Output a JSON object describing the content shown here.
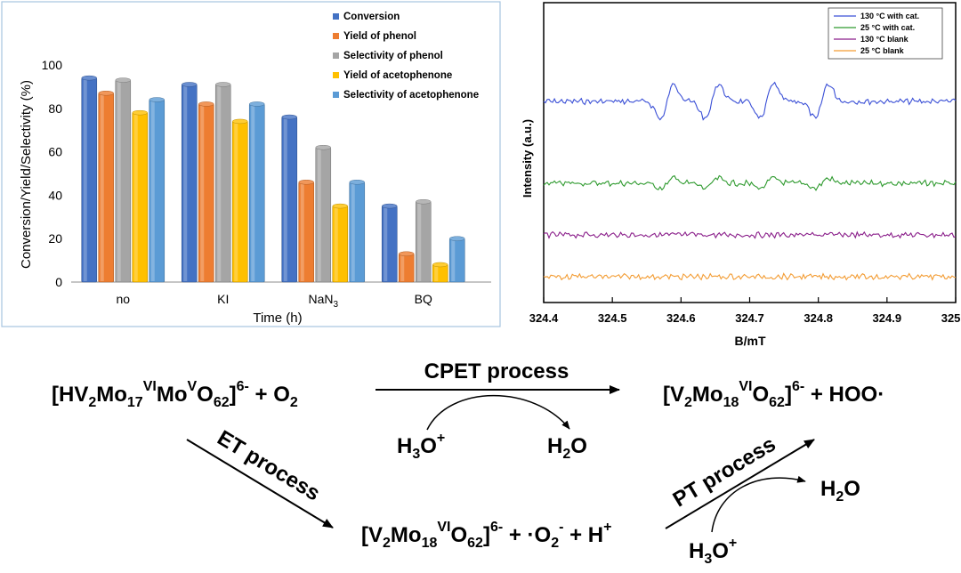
{
  "chart_data": [
    {
      "type": "bar",
      "xlabel": "Time (h)",
      "ylabel": "Conversion/Yield/Selectivity (%)",
      "ylim": [
        0,
        100
      ],
      "yticks": [
        "0",
        "20",
        "40",
        "60",
        "80",
        "100"
      ],
      "categories": [
        {
          "label": "no",
          "sub": ""
        },
        {
          "label": "KI",
          "sub": ""
        },
        {
          "label": "NaN",
          "sub": "3"
        },
        {
          "label": "BQ",
          "sub": ""
        }
      ],
      "legend_position": "top-right",
      "grid": false,
      "series": [
        {
          "name": "Conversion",
          "color": "#4472c4",
          "values": [
            94,
            91,
            76,
            35
          ]
        },
        {
          "name": "Yield of phenol",
          "color": "#ed7d31",
          "values": [
            87,
            82,
            46,
            13
          ]
        },
        {
          "name": "Selectivity of phenol",
          "color": "#a5a5a5",
          "values": [
            93,
            91,
            62,
            37
          ]
        },
        {
          "name": "Yield of acetophenone",
          "color": "#ffc000",
          "values": [
            78,
            74,
            35,
            8
          ]
        },
        {
          "name": "Selectivity of acetophenone",
          "color": "#5b9bd5",
          "values": [
            84,
            82,
            46,
            20
          ]
        }
      ]
    },
    {
      "type": "line",
      "xlabel": "B/mT",
      "ylabel": "Intensity (a.u.)",
      "xlim": [
        324.4,
        325.0
      ],
      "xticks": [
        "324.4",
        "324.5",
        "324.6",
        "324.7",
        "324.8",
        "324.9",
        "325.0"
      ],
      "grid": false,
      "legend_position": "top-right",
      "hyperfine_peaks_mT": [
        324.58,
        324.645,
        324.725,
        324.805
      ],
      "series": [
        {
          "name": "130 °C with cat.",
          "color": "#3a4fd6",
          "line_amplitude": 1.0
        },
        {
          "name": "25 °C with cat.",
          "color": "#2e9a2e",
          "line_amplitude": 0.28
        },
        {
          "name": "130 °C blank",
          "color": "#8a1e8a",
          "line_amplitude": 0.0
        },
        {
          "name": "25 °C blank",
          "color": "#f39c33",
          "line_amplitude": 0.0
        }
      ]
    }
  ],
  "scheme": {
    "reactant": {
      "a": "[HV",
      "a_sub": "2",
      "b": "Mo",
      "b_sub": "17",
      "b_sup": "VI",
      "c": "Mo",
      "c_sup": "V",
      "d": "O",
      "d_sub": "62",
      "e": "]",
      "e_sup": "6-",
      "f": " + O",
      "f_sub": "2"
    },
    "product_top": {
      "a": "[V",
      "a_sub": "2",
      "b": "Mo",
      "b_sub": "18",
      "b_sup": "VI",
      "c": "O",
      "c_sub": "62",
      "d": "]",
      "d_sup": "6-",
      "e": " + HOO·"
    },
    "intermediate": {
      "a": "[V",
      "a_sub": "2",
      "b": "Mo",
      "b_sub": "18",
      "b_sup": "VI",
      "c": "O",
      "c_sub": "62",
      "d": "]",
      "d_sup": "6-",
      "e": " + ·O",
      "e_sub": "2",
      "e_sup": "-",
      "f": " + H",
      "f_sup": "+"
    },
    "cpet_label": "CPET process",
    "et_label": "ET process",
    "pt_label": "PT process",
    "h3o_cpet": {
      "a": "H",
      "a_sub": "3",
      "b": "O",
      "b_sup": "+"
    },
    "h2o_cpet": {
      "a": "H",
      "a_sub": "2",
      "b": "O"
    },
    "h3o_pt": {
      "a": "H",
      "a_sub": "3",
      "b": "O",
      "b_sup": "+"
    },
    "h2o_pt": {
      "a": "H",
      "a_sub": "2",
      "b": "O"
    }
  }
}
